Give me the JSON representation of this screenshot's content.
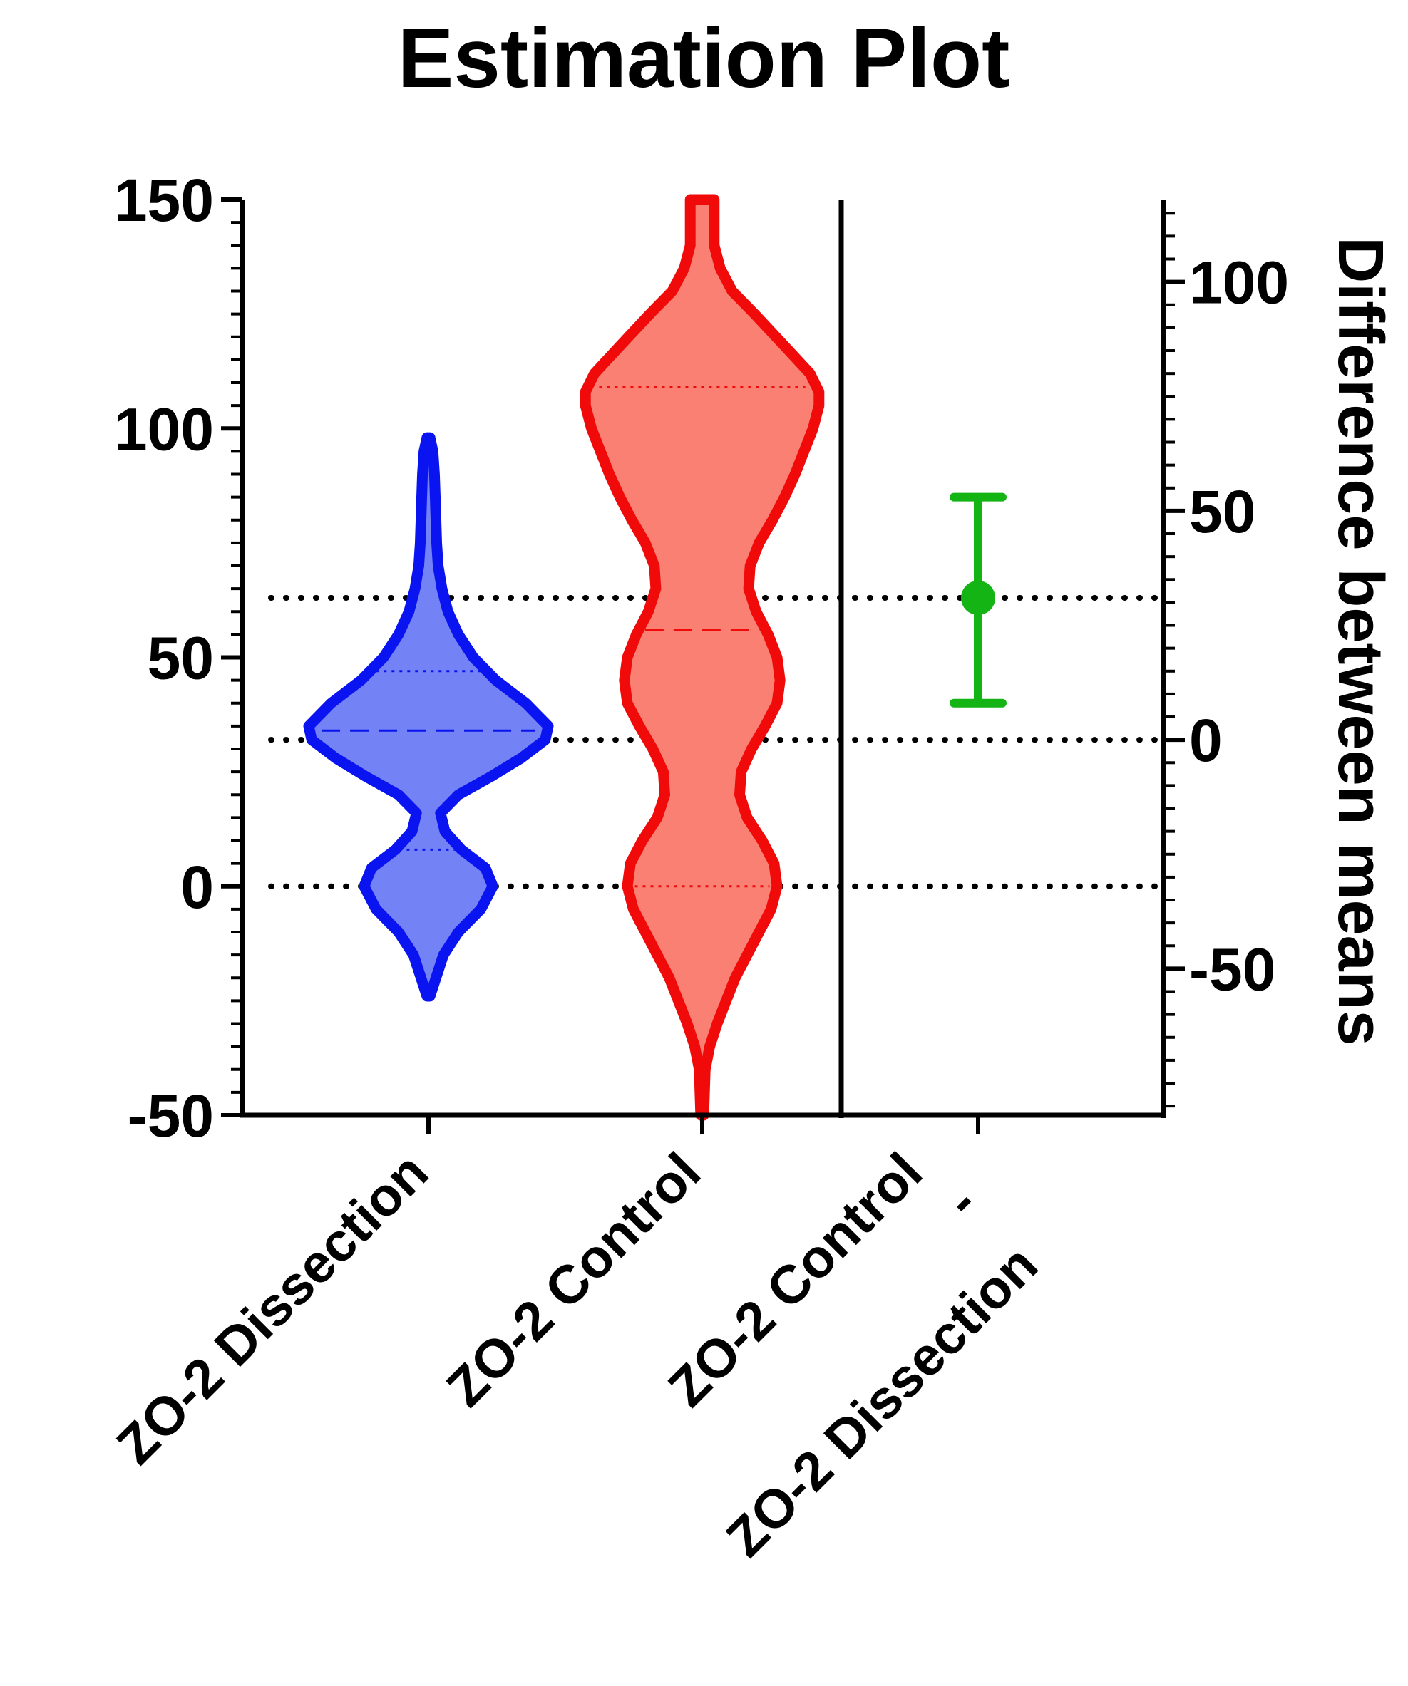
{
  "chart_data": {
    "type": "violin",
    "title": "Estimation Plot",
    "left_axis": {
      "label": "",
      "ylim": [
        -50,
        150
      ],
      "ticks": [
        -50,
        0,
        50,
        100,
        150
      ],
      "tick_labels": [
        "-50",
        "0",
        "50",
        "100",
        "150"
      ]
    },
    "right_axis": {
      "label": "Difference between means",
      "ylim": [
        -82,
        118
      ],
      "ticks": [
        -50,
        0,
        50,
        100
      ],
      "tick_labels": [
        "-50",
        "0",
        "50",
        "100"
      ]
    },
    "categories": [
      "ZO-2 Dissection",
      "ZO-2 Control",
      "ZO-2 Control\n-\nZO-2 Dissection"
    ],
    "category_labels": [
      [
        "ZO-2 Dissection"
      ],
      [
        "ZO-2 Control"
      ],
      [
        "ZO-2 Control",
        "-",
        "ZO-2 Dissection"
      ]
    ],
    "series": [
      {
        "category": "ZO-2 Dissection",
        "stroke": "#0a14f0",
        "fill": "#7382f5",
        "min": -24,
        "max": 98,
        "median": 34,
        "q1": 8,
        "q3": 47,
        "density": [
          [
            -24,
            0.01
          ],
          [
            -20,
            0.05
          ],
          [
            -15,
            0.1
          ],
          [
            -10,
            0.2
          ],
          [
            -5,
            0.35
          ],
          [
            0,
            0.43
          ],
          [
            4,
            0.38
          ],
          [
            8,
            0.22
          ],
          [
            12,
            0.11
          ],
          [
            16,
            0.08
          ],
          [
            20,
            0.2
          ],
          [
            24,
            0.42
          ],
          [
            28,
            0.62
          ],
          [
            32,
            0.78
          ],
          [
            35,
            0.8
          ],
          [
            40,
            0.65
          ],
          [
            45,
            0.45
          ],
          [
            50,
            0.3
          ],
          [
            55,
            0.2
          ],
          [
            60,
            0.13
          ],
          [
            65,
            0.09
          ],
          [
            70,
            0.065
          ],
          [
            75,
            0.055
          ],
          [
            80,
            0.05
          ],
          [
            85,
            0.045
          ],
          [
            90,
            0.04
          ],
          [
            95,
            0.03
          ],
          [
            98,
            0.01
          ]
        ]
      },
      {
        "category": "ZO-2 Control",
        "stroke": "#f00a0a",
        "fill": "#fa8073",
        "min": -50,
        "max": 150,
        "median": 56,
        "q1": 0,
        "q3": 109,
        "density": [
          [
            -50,
            0.01
          ],
          [
            -40,
            0.02
          ],
          [
            -35,
            0.05
          ],
          [
            -30,
            0.1
          ],
          [
            -20,
            0.22
          ],
          [
            -10,
            0.38
          ],
          [
            -5,
            0.46
          ],
          [
            0,
            0.5
          ],
          [
            5,
            0.48
          ],
          [
            10,
            0.4
          ],
          [
            15,
            0.3
          ],
          [
            20,
            0.25
          ],
          [
            25,
            0.26
          ],
          [
            30,
            0.33
          ],
          [
            35,
            0.42
          ],
          [
            40,
            0.5
          ],
          [
            45,
            0.52
          ],
          [
            50,
            0.5
          ],
          [
            55,
            0.44
          ],
          [
            60,
            0.36
          ],
          [
            65,
            0.31
          ],
          [
            70,
            0.32
          ],
          [
            75,
            0.38
          ],
          [
            80,
            0.47
          ],
          [
            85,
            0.55
          ],
          [
            90,
            0.62
          ],
          [
            95,
            0.68
          ],
          [
            100,
            0.74
          ],
          [
            105,
            0.78
          ],
          [
            108,
            0.78
          ],
          [
            112,
            0.72
          ],
          [
            118,
            0.55
          ],
          [
            125,
            0.35
          ],
          [
            130,
            0.2
          ],
          [
            135,
            0.12
          ],
          [
            140,
            0.08
          ],
          [
            145,
            0.08
          ],
          [
            150,
            0.08
          ]
        ]
      }
    ],
    "difference": {
      "category": "ZO-2 Control\n-\nZO-2 Dissection",
      "color": "#14b414",
      "mean": 31,
      "ci_low": 8,
      "ci_high": 53
    },
    "reference_lines": {
      "left_axis_values": [
        0,
        32
      ],
      "right_axis_values": [
        31
      ],
      "style": "dotted"
    }
  }
}
